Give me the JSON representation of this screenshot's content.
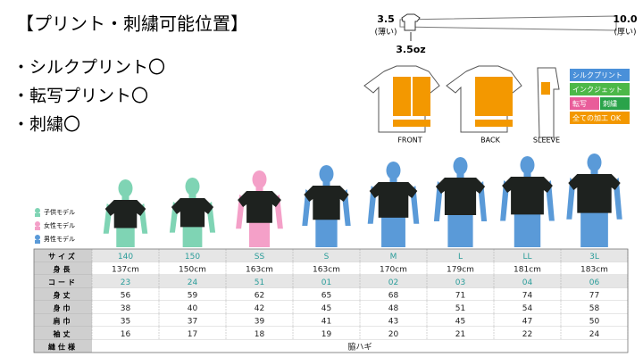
{
  "header": {
    "title": "【プリント・刺繍可能位置】"
  },
  "print_methods": [
    "・シルクプリント〇",
    "・転写プリント〇",
    "・刺繍〇"
  ],
  "thickness": {
    "min": "3.5",
    "min_note": "(薄い)",
    "max": "10.0",
    "max_note": "(厚い)",
    "current": "3.5oz"
  },
  "views": [
    "FRONT",
    "BACK",
    "SLEEVE"
  ],
  "print_legend": [
    "シルクプリント",
    "インクジェット",
    "転写",
    "刺繍",
    "全ての加工 OK"
  ],
  "model_legend": [
    "子供モデル",
    "女性モデル",
    "男性モデル"
  ],
  "table": {
    "rows": [
      [
        "サイズ",
        "140",
        "150",
        "SS",
        "S",
        "M",
        "L",
        "LL",
        "3L"
      ],
      [
        "身長",
        "137cm",
        "150cm",
        "163cm",
        "163cm",
        "170cm",
        "179cm",
        "181cm",
        "183cm"
      ],
      [
        "コード",
        "23",
        "24",
        "51",
        "01",
        "02",
        "03",
        "04",
        "06"
      ],
      [
        "身丈",
        "56",
        "59",
        "62",
        "65",
        "68",
        "71",
        "74",
        "77"
      ],
      [
        "身巾",
        "38",
        "40",
        "42",
        "45",
        "48",
        "51",
        "54",
        "58"
      ],
      [
        "肩巾",
        "35",
        "37",
        "39",
        "41",
        "43",
        "45",
        "47",
        "50"
      ],
      [
        "袖丈",
        "16",
        "17",
        "18",
        "19",
        "20",
        "21",
        "22",
        "24"
      ],
      [
        "縫仕様",
        "脇ハギ"
      ]
    ]
  }
}
